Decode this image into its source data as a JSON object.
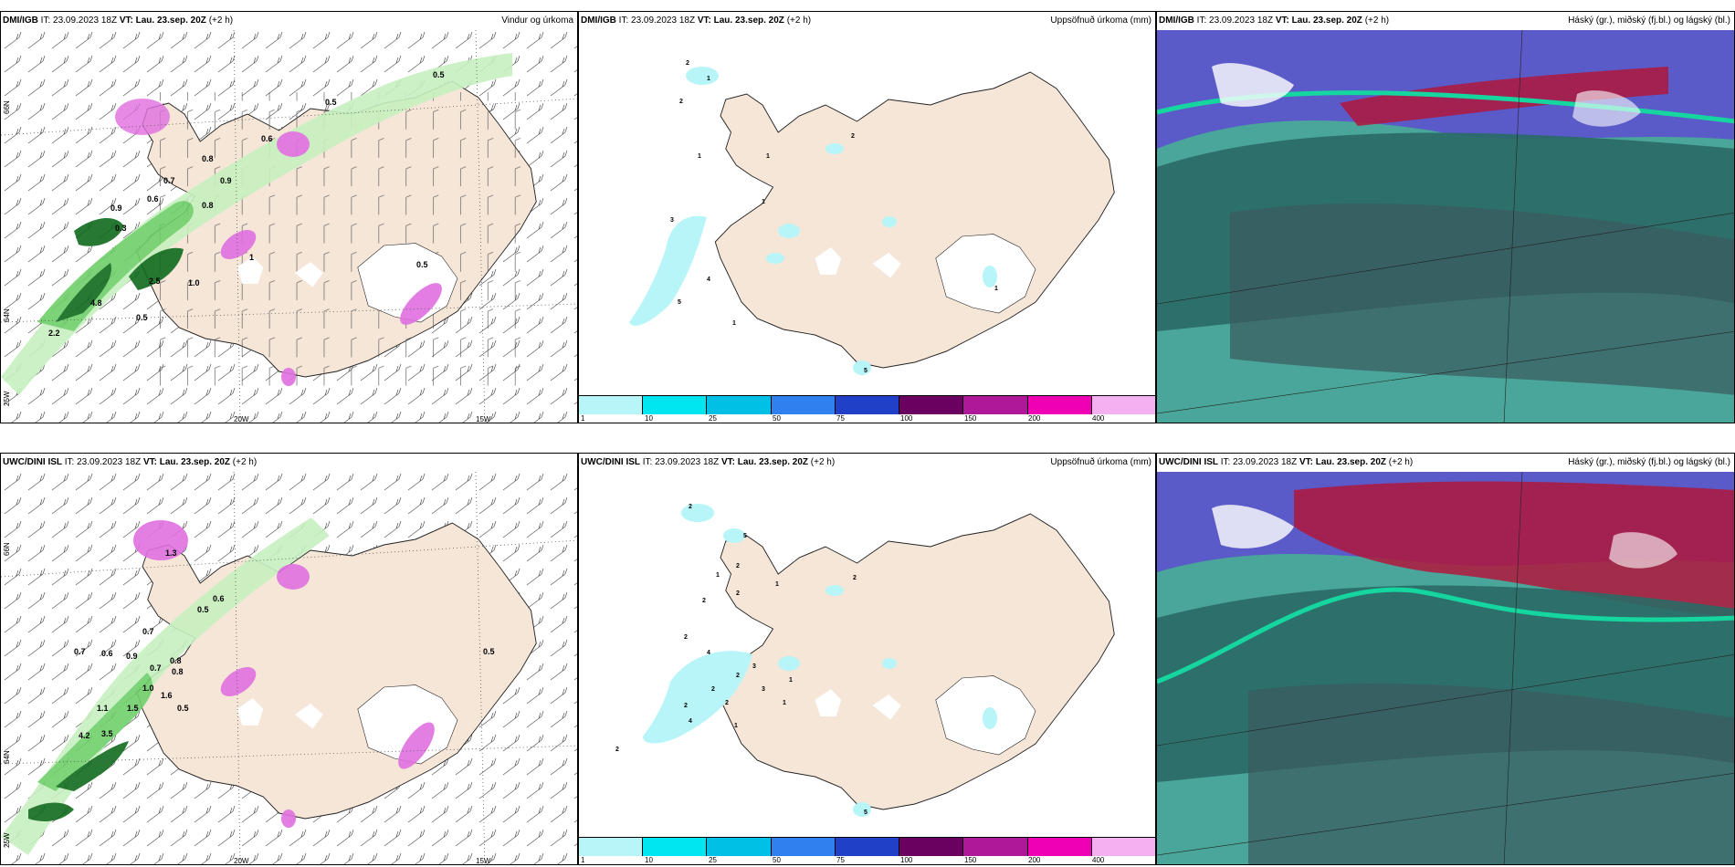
{
  "panels": [
    {
      "model": "DMI/IGB",
      "it": "IT: 23.09.2023 18Z",
      "vt_label": "VT:",
      "vt": "Lau. 23.sep. 20Z",
      "lead": "(+2 h)",
      "title": "Vindur og úrkoma"
    },
    {
      "model": "DMI/IGB",
      "it": "IT: 23.09.2023 18Z",
      "vt_label": "VT:",
      "vt": "Lau. 23.sep. 20Z",
      "lead": "(+2 h)",
      "title": "Uppsöfnuð úrkoma (mm)"
    },
    {
      "model": "DMI/IGB",
      "it": "IT: 23.09.2023 18Z",
      "vt_label": "VT:",
      "vt": "Lau. 23.sep. 20Z",
      "lead": "(+2 h)",
      "title": "Háský (gr.), miðský (fj.bl.) og lágský (bl.)"
    },
    {
      "model": "UWC/DINI ISL",
      "it": "IT: 23.09.2023 18Z",
      "vt_label": "VT:",
      "vt": "Lau. 23.sep. 20Z",
      "lead": "(+2 h)",
      "title": ""
    },
    {
      "model": "UWC/DINI ISL",
      "it": "IT: 23.09.2023 18Z",
      "vt_label": "VT:",
      "vt": "Lau. 23.sep. 20Z",
      "lead": "(+2 h)",
      "title": "Uppsöfnuð úrkoma (mm)"
    },
    {
      "model": "UWC/DINI ISL",
      "it": "IT: 23.09.2023 18Z",
      "vt_label": "VT:",
      "vt": "Lau. 23.sep. 20Z",
      "lead": "(+2 h)",
      "title": "Háský (gr.), miðský (fj.bl.) og lágský (bl.)"
    }
  ],
  "axes": {
    "lon_20w": "20W",
    "lon_15w": "15W",
    "lon_25w": "25W",
    "lat_66n": "66N",
    "lat_64n": "64N"
  },
  "precip_scale": {
    "ticks": [
      "1",
      "10",
      "25",
      "50",
      "75",
      "100",
      "150",
      "200",
      "400"
    ],
    "colors": [
      "#b7f5f8",
      "#00e6f0",
      "#00c0e6",
      "#3080f0",
      "#2040c8",
      "#6a0060",
      "#b0189a",
      "#f000b4",
      "#f4b0f0"
    ]
  },
  "wind_labels_top": [
    "0.5",
    "0.5",
    "0.6",
    "0.8",
    "0.9",
    "0.7",
    "0.6",
    "0.8",
    "0.9",
    "0.5",
    "0.3",
    "2.5",
    "1.0",
    "4.8",
    "0.5",
    "2.2",
    "1"
  ],
  "wind_labels_bottom": [
    "1.3",
    "0.6",
    "0.5",
    "0.7",
    "0.7",
    "0.9",
    "0.8",
    "0.7",
    "0.6",
    "0.8",
    "1.0",
    "1.6",
    "0.5",
    "1.1",
    "1.5",
    "3.5",
    "4.2",
    "0.5"
  ],
  "accum_labels_top": [
    "2",
    "1",
    "2",
    "1",
    "1",
    "3",
    "4",
    "5",
    "1",
    "1",
    "2",
    "1",
    "5"
  ],
  "accum_labels_bottom": [
    "2",
    "5",
    "2",
    "1",
    "1",
    "2",
    "2",
    "2",
    "2",
    "4",
    "3",
    "1",
    "2",
    "2",
    "3",
    "2",
    "2",
    "4",
    "1",
    "1",
    "2",
    "5"
  ],
  "colors": {
    "land": "#f5e6d8",
    "green_light": "#c8f0c0",
    "green_mid": "#6fd06a",
    "green_dark": "#0f6a1c",
    "magenta": "#e070e0",
    "cloud_high": "#2e4ab2",
    "cloud_low": "#2a7a70",
    "cloud_mid": "#b0183c"
  }
}
